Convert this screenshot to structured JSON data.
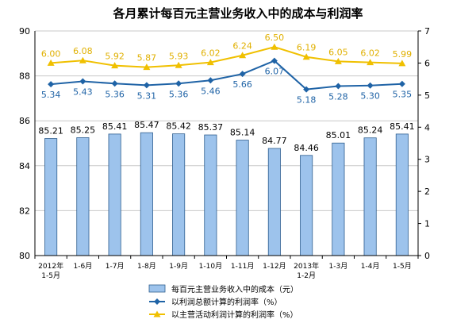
{
  "chart_data": {
    "type": "bar",
    "title": "各月累计每百元主营业务收入中的成本与利润率",
    "categories": [
      [
        "2012年",
        "1-5月"
      ],
      [
        "1-6月"
      ],
      [
        "1-7月"
      ],
      [
        "1-8月"
      ],
      [
        "1-9月"
      ],
      [
        "1-10月"
      ],
      [
        "1-11月"
      ],
      [
        "1-12月"
      ],
      [
        "2013年",
        "1-2月"
      ],
      [
        "1-3月"
      ],
      [
        "1-4月"
      ],
      [
        "1-5月"
      ]
    ],
    "left_axis": {
      "ylim": [
        80,
        90
      ],
      "ticks": [
        "80",
        "82",
        "84",
        "86",
        "88",
        "90"
      ]
    },
    "right_axis": {
      "ylim": [
        0,
        7
      ],
      "ticks": [
        "0",
        "1",
        "2",
        "3",
        "4",
        "5",
        "6",
        "7"
      ]
    },
    "grid": true,
    "legend_position": "bottom",
    "series": [
      {
        "name": "每百元主营业务收入中的成本（元）",
        "type": "bar",
        "axis": "left",
        "color": "#9dc3ec",
        "values": [
          85.21,
          85.25,
          85.41,
          85.47,
          85.42,
          85.37,
          85.14,
          84.77,
          84.46,
          85.01,
          85.24,
          85.41
        ],
        "labels": [
          "85.21",
          "85.25",
          "85.41",
          "85.47",
          "85.42",
          "85.37",
          "85.14",
          "84.77",
          "84.46",
          "85.01",
          "85.24",
          "85.41"
        ]
      },
      {
        "name": "以利润总额计算的利润率（%）",
        "type": "line",
        "axis": "right",
        "color": "#1f63a6",
        "marker": "diamond",
        "values": [
          5.34,
          5.43,
          5.36,
          5.31,
          5.36,
          5.46,
          5.66,
          6.07,
          5.18,
          5.28,
          5.3,
          5.35
        ],
        "labels": [
          "5.34",
          "5.43",
          "5.36",
          "5.31",
          "5.36",
          "5.46",
          "5.66",
          "6.07",
          "5.18",
          "5.28",
          "5.30",
          "5.35"
        ]
      },
      {
        "name": "以主营活动利润计算的利润率（%）",
        "type": "line",
        "axis": "right",
        "color": "#f0c000",
        "marker": "triangle",
        "values": [
          6.0,
          6.08,
          5.92,
          5.87,
          5.93,
          6.02,
          6.24,
          6.5,
          6.19,
          6.05,
          6.02,
          5.99
        ],
        "labels": [
          "6.00",
          "6.08",
          "5.92",
          "5.87",
          "5.93",
          "6.02",
          "6.24",
          "6.50",
          "6.19",
          "6.05",
          "6.02",
          "5.99"
        ]
      }
    ]
  }
}
